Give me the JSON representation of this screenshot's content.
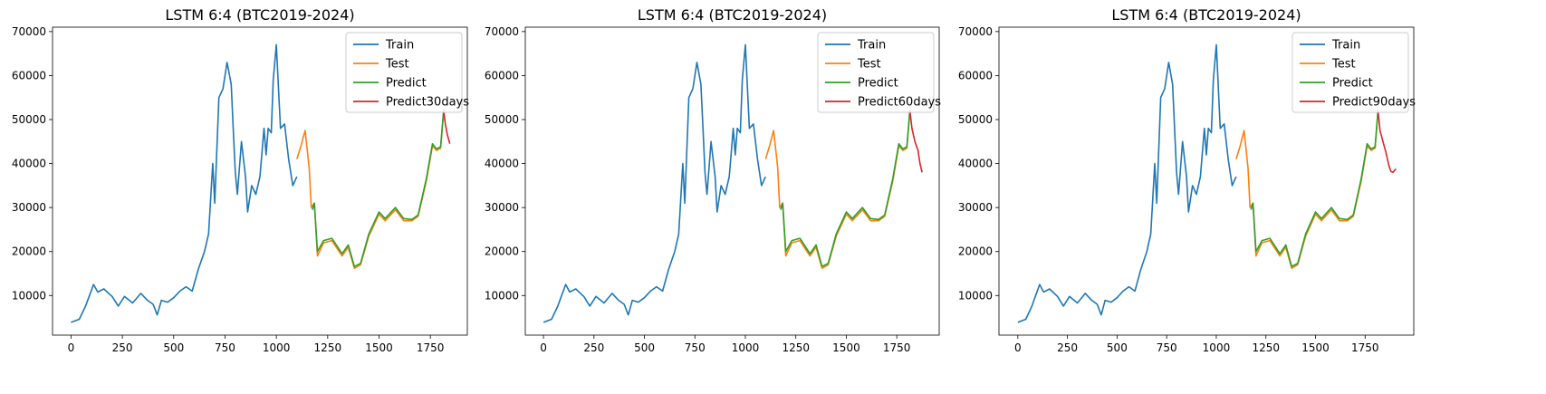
{
  "colors": {
    "Train": "#1f77b4",
    "Test": "#ff7f0e",
    "Predict": "#2ca02c",
    "Forecast": "#d62728"
  },
  "chart_data": [
    {
      "type": "line",
      "title": "LSTM 6:4 (BTC2019-2024)",
      "xlim": [
        -90,
        1930
      ],
      "ylim": [
        1000,
        71000
      ],
      "xticks": [
        0,
        250,
        500,
        750,
        1000,
        1250,
        1500,
        1750
      ],
      "yticks": [
        10000,
        20000,
        30000,
        40000,
        50000,
        60000,
        70000
      ],
      "legend": "top-right",
      "series": [
        {
          "name": "Train",
          "color": "#1f77b4",
          "x": [
            0,
            40,
            70,
            90,
            110,
            130,
            160,
            200,
            230,
            260,
            300,
            340,
            370,
            400,
            420,
            440,
            470,
            500,
            530,
            560,
            590,
            620,
            650,
            670,
            690,
            700,
            720,
            740,
            760,
            780,
            790,
            800,
            810,
            830,
            850,
            860,
            880,
            900,
            920,
            940,
            950,
            960,
            975,
            985,
            1000,
            1020,
            1040,
            1060,
            1080,
            1100
          ],
          "y": [
            3900,
            4600,
            7500,
            10000,
            12500,
            10800,
            11500,
            9800,
            7600,
            9800,
            8300,
            10500,
            9000,
            8000,
            5600,
            8900,
            8500,
            9500,
            11000,
            12000,
            11000,
            16000,
            20000,
            24000,
            40000,
            31000,
            55000,
            57000,
            63000,
            58000,
            48000,
            38000,
            33000,
            45000,
            37000,
            29000,
            35000,
            33000,
            37000,
            48000,
            42000,
            48000,
            47000,
            59000,
            67000,
            48000,
            49000,
            41000,
            35000,
            37000
          ]
        },
        {
          "name": "Test",
          "color": "#ff7f0e",
          "x": [
            1100,
            1120,
            1140,
            1160,
            1170,
            1185,
            1200,
            1230,
            1270,
            1320,
            1350,
            1380,
            1410,
            1450,
            1500,
            1530,
            1580,
            1620,
            1660,
            1690,
            1730,
            1760,
            1780,
            1800,
            1815
          ],
          "y": [
            41000,
            44000,
            47500,
            39000,
            30000,
            31000,
            19000,
            22000,
            22500,
            19000,
            21000,
            16200,
            17000,
            23500,
            28500,
            27000,
            29500,
            27000,
            27000,
            28000,
            36000,
            44000,
            43000,
            43500,
            52000
          ]
        },
        {
          "name": "Predict",
          "color": "#2ca02c",
          "x": [
            1175,
            1185,
            1200,
            1230,
            1270,
            1320,
            1350,
            1380,
            1410,
            1450,
            1500,
            1530,
            1580,
            1620,
            1660,
            1690,
            1730,
            1760,
            1780,
            1800,
            1815
          ],
          "y": [
            29500,
            31000,
            20000,
            22500,
            23000,
            19500,
            21500,
            16600,
            17300,
            24000,
            29000,
            27500,
            30000,
            27500,
            27300,
            28300,
            36500,
            44500,
            43300,
            43800,
            52300
          ]
        }
      ],
      "forecast": {
        "name": "Predict30days",
        "color": "#d62728",
        "x": [
          1815,
          1823,
          1833,
          1845
        ],
        "y": [
          52000,
          49000,
          46500,
          44500
        ]
      }
    },
    {
      "type": "line",
      "title": "LSTM 6:4 (BTC2019-2024)",
      "xlim": [
        -90,
        1960
      ],
      "ylim": [
        1000,
        71000
      ],
      "xticks": [
        0,
        250,
        500,
        750,
        1000,
        1250,
        1500,
        1750
      ],
      "yticks": [
        10000,
        20000,
        30000,
        40000,
        50000,
        60000,
        70000
      ],
      "legend": "top-right",
      "series": [
        {
          "name": "Train",
          "color": "#1f77b4",
          "x": [
            0,
            40,
            70,
            90,
            110,
            130,
            160,
            200,
            230,
            260,
            300,
            340,
            370,
            400,
            420,
            440,
            470,
            500,
            530,
            560,
            590,
            620,
            650,
            670,
            690,
            700,
            720,
            740,
            760,
            780,
            790,
            800,
            810,
            830,
            850,
            860,
            880,
            900,
            920,
            940,
            950,
            960,
            975,
            985,
            1000,
            1020,
            1040,
            1060,
            1080,
            1100
          ],
          "y": [
            3900,
            4600,
            7500,
            10000,
            12500,
            10800,
            11500,
            9800,
            7600,
            9800,
            8300,
            10500,
            9000,
            8000,
            5600,
            8900,
            8500,
            9500,
            11000,
            12000,
            11000,
            16000,
            20000,
            24000,
            40000,
            31000,
            55000,
            57000,
            63000,
            58000,
            48000,
            38000,
            33000,
            45000,
            37000,
            29000,
            35000,
            33000,
            37000,
            48000,
            42000,
            48000,
            47000,
            59000,
            67000,
            48000,
            49000,
            41000,
            35000,
            37000
          ]
        },
        {
          "name": "Test",
          "color": "#ff7f0e",
          "x": [
            1100,
            1120,
            1140,
            1160,
            1170,
            1185,
            1200,
            1230,
            1270,
            1320,
            1350,
            1380,
            1410,
            1450,
            1500,
            1530,
            1580,
            1620,
            1660,
            1690,
            1730,
            1760,
            1780,
            1800,
            1815
          ],
          "y": [
            41000,
            44000,
            47500,
            39000,
            30000,
            31000,
            19000,
            22000,
            22500,
            19000,
            21000,
            16200,
            17000,
            23500,
            28500,
            27000,
            29500,
            27000,
            27000,
            28000,
            36000,
            44000,
            43000,
            43500,
            52000
          ]
        },
        {
          "name": "Predict",
          "color": "#2ca02c",
          "x": [
            1175,
            1185,
            1200,
            1230,
            1270,
            1320,
            1350,
            1380,
            1410,
            1450,
            1500,
            1530,
            1580,
            1620,
            1660,
            1690,
            1730,
            1760,
            1780,
            1800,
            1815
          ],
          "y": [
            29500,
            31000,
            20000,
            22500,
            23000,
            19500,
            21500,
            16600,
            17300,
            24000,
            29000,
            27500,
            30000,
            27500,
            27300,
            28300,
            36500,
            44500,
            43300,
            43800,
            52300
          ]
        }
      ],
      "forecast": {
        "name": "Predict60days",
        "color": "#d62728",
        "x": [
          1815,
          1825,
          1840,
          1855,
          1865,
          1875
        ],
        "y": [
          52000,
          48000,
          45000,
          43000,
          40000,
          38000
        ]
      }
    },
    {
      "type": "line",
      "title": "LSTM 6:4 (BTC2019-2024)",
      "xlim": [
        -95,
        1995
      ],
      "ylim": [
        1000,
        71000
      ],
      "xticks": [
        0,
        250,
        500,
        750,
        1000,
        1250,
        1500,
        1750
      ],
      "yticks": [
        10000,
        20000,
        30000,
        40000,
        50000,
        60000,
        70000
      ],
      "legend": "top-right",
      "series": [
        {
          "name": "Train",
          "color": "#1f77b4",
          "x": [
            0,
            40,
            70,
            90,
            110,
            130,
            160,
            200,
            230,
            260,
            300,
            340,
            370,
            400,
            420,
            440,
            470,
            500,
            530,
            560,
            590,
            620,
            650,
            670,
            690,
            700,
            720,
            740,
            760,
            780,
            790,
            800,
            810,
            830,
            850,
            860,
            880,
            900,
            920,
            940,
            950,
            960,
            975,
            985,
            1000,
            1020,
            1040,
            1060,
            1080,
            1100
          ],
          "y": [
            3900,
            4600,
            7500,
            10000,
            12500,
            10800,
            11500,
            9800,
            7600,
            9800,
            8300,
            10500,
            9000,
            8000,
            5600,
            8900,
            8500,
            9500,
            11000,
            12000,
            11000,
            16000,
            20000,
            24000,
            40000,
            31000,
            55000,
            57000,
            63000,
            58000,
            48000,
            38000,
            33000,
            45000,
            37000,
            29000,
            35000,
            33000,
            37000,
            48000,
            42000,
            48000,
            47000,
            59000,
            67000,
            48000,
            49000,
            41000,
            35000,
            37000
          ]
        },
        {
          "name": "Test",
          "color": "#ff7f0e",
          "x": [
            1100,
            1120,
            1140,
            1160,
            1170,
            1185,
            1200,
            1230,
            1270,
            1320,
            1350,
            1380,
            1410,
            1450,
            1500,
            1530,
            1580,
            1620,
            1660,
            1690,
            1730,
            1760,
            1780,
            1800,
            1815
          ],
          "y": [
            41000,
            44000,
            47500,
            39000,
            30000,
            31000,
            19000,
            22000,
            22500,
            19000,
            21000,
            16200,
            17000,
            23500,
            28500,
            27000,
            29500,
            27000,
            27000,
            28000,
            36000,
            44000,
            43000,
            43500,
            52000
          ]
        },
        {
          "name": "Predict",
          "color": "#2ca02c",
          "x": [
            1175,
            1185,
            1200,
            1230,
            1270,
            1320,
            1350,
            1380,
            1410,
            1450,
            1500,
            1530,
            1580,
            1620,
            1660,
            1690,
            1730,
            1760,
            1780,
            1800,
            1815
          ],
          "y": [
            29500,
            31000,
            20000,
            22500,
            23000,
            19500,
            21500,
            16600,
            17300,
            24000,
            29000,
            27500,
            30000,
            27500,
            27300,
            28300,
            36500,
            44500,
            43300,
            43800,
            52300
          ]
        }
      ],
      "forecast": {
        "name": "Predict90days",
        "color": "#d62728",
        "x": [
          1815,
          1825,
          1840,
          1855,
          1870,
          1880,
          1890,
          1905
        ],
        "y": [
          52000,
          47500,
          45000,
          42500,
          39500,
          38200,
          38000,
          38800
        ]
      }
    }
  ]
}
